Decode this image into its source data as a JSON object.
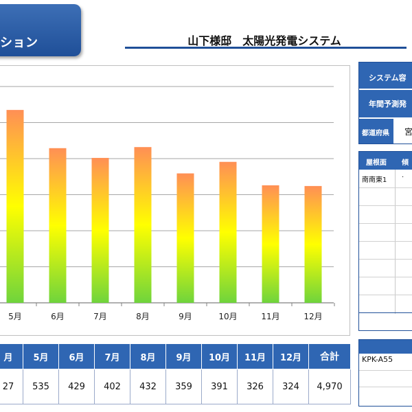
{
  "header": {
    "tab_label": "ション",
    "page_title": "山下様邸　太陽光発電システム"
  },
  "side_panel": {
    "system_capacity_label": "システム容",
    "annual_generation_label": "年間予測発",
    "prefecture_label": "都道府県",
    "prefecture_value": "宮",
    "roof_headers": [
      "屋根面",
      "傾"
    ],
    "roof_rows": [
      [
        "南南東1",
        "·"
      ]
    ],
    "module_model": "KPK-A55"
  },
  "table": {
    "headers": [
      "月",
      "5月",
      "6月",
      "7月",
      "8月",
      "9月",
      "10月",
      "11月",
      "12月"
    ],
    "values": [
      "27",
      "535",
      "429",
      "402",
      "432",
      "359",
      "391",
      "326",
      "324"
    ],
    "total_label": "合計",
    "total_value": "4,970"
  },
  "chart_data": {
    "type": "bar",
    "categories": [
      "5月",
      "6月",
      "7月",
      "8月",
      "9月",
      "10月",
      "11月",
      "12月"
    ],
    "values": [
      535,
      429,
      402,
      432,
      359,
      391,
      326,
      324
    ],
    "ylim": [
      0,
      600
    ],
    "grid": true,
    "bar_gradient": [
      "#ff8f55",
      "#ffff00",
      "#6fd43c"
    ],
    "title": "",
    "xlabel": "",
    "ylabel": ""
  }
}
